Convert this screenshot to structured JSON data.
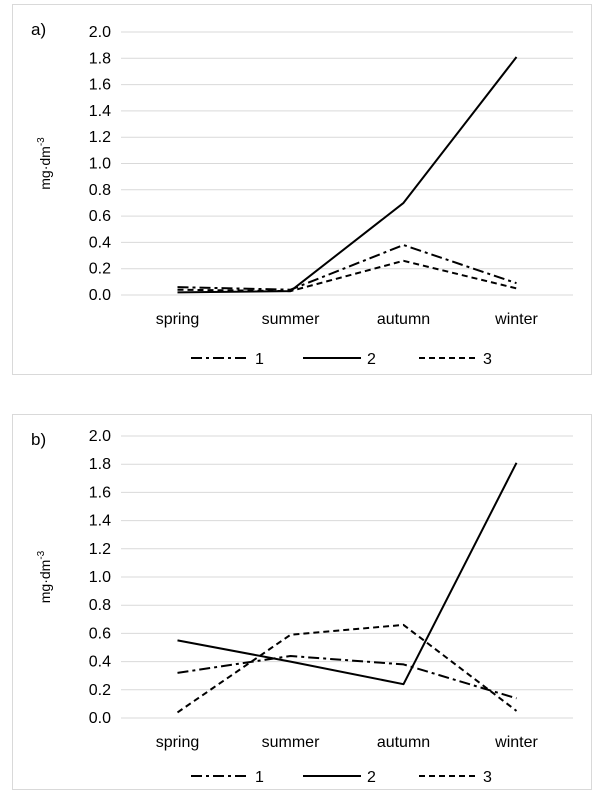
{
  "chart_data": [
    {
      "type": "line",
      "panel_label": "a)",
      "ylabel": "mg·dm",
      "ylabel_sup": "-3",
      "ylim": [
        0,
        2.0
      ],
      "yticks": [
        "0.0",
        "0.2",
        "0.4",
        "0.6",
        "0.8",
        "1.0",
        "1.2",
        "1.4",
        "1.6",
        "1.8",
        "2.0"
      ],
      "categories": [
        "spring",
        "summer",
        "autumn",
        "winter"
      ],
      "grid": "horizontal",
      "legend_position": "bottom",
      "series": [
        {
          "name": "1",
          "style": "dash-dot",
          "values": [
            0.06,
            0.04,
            0.38,
            0.09
          ]
        },
        {
          "name": "2",
          "style": "solid",
          "values": [
            0.02,
            0.03,
            0.7,
            1.81
          ]
        },
        {
          "name": "3",
          "style": "dashed",
          "values": [
            0.04,
            0.03,
            0.26,
            0.05
          ]
        }
      ]
    },
    {
      "type": "line",
      "panel_label": "b)",
      "ylabel": "mg·dm",
      "ylabel_sup": "-3",
      "ylim": [
        0,
        2.0
      ],
      "yticks": [
        "0.0",
        "0.2",
        "0.4",
        "0.6",
        "0.8",
        "1.0",
        "1.2",
        "1.4",
        "1.6",
        "1.8",
        "2.0"
      ],
      "categories": [
        "spring",
        "summer",
        "autumn",
        "winter"
      ],
      "grid": "horizontal",
      "legend_position": "bottom",
      "series": [
        {
          "name": "1",
          "style": "dash-dot",
          "values": [
            0.32,
            0.44,
            0.38,
            0.14
          ]
        },
        {
          "name": "2",
          "style": "solid",
          "values": [
            0.55,
            0.4,
            0.24,
            1.81
          ]
        },
        {
          "name": "3",
          "style": "dashed",
          "values": [
            0.04,
            0.59,
            0.66,
            0.05
          ]
        }
      ]
    }
  ]
}
